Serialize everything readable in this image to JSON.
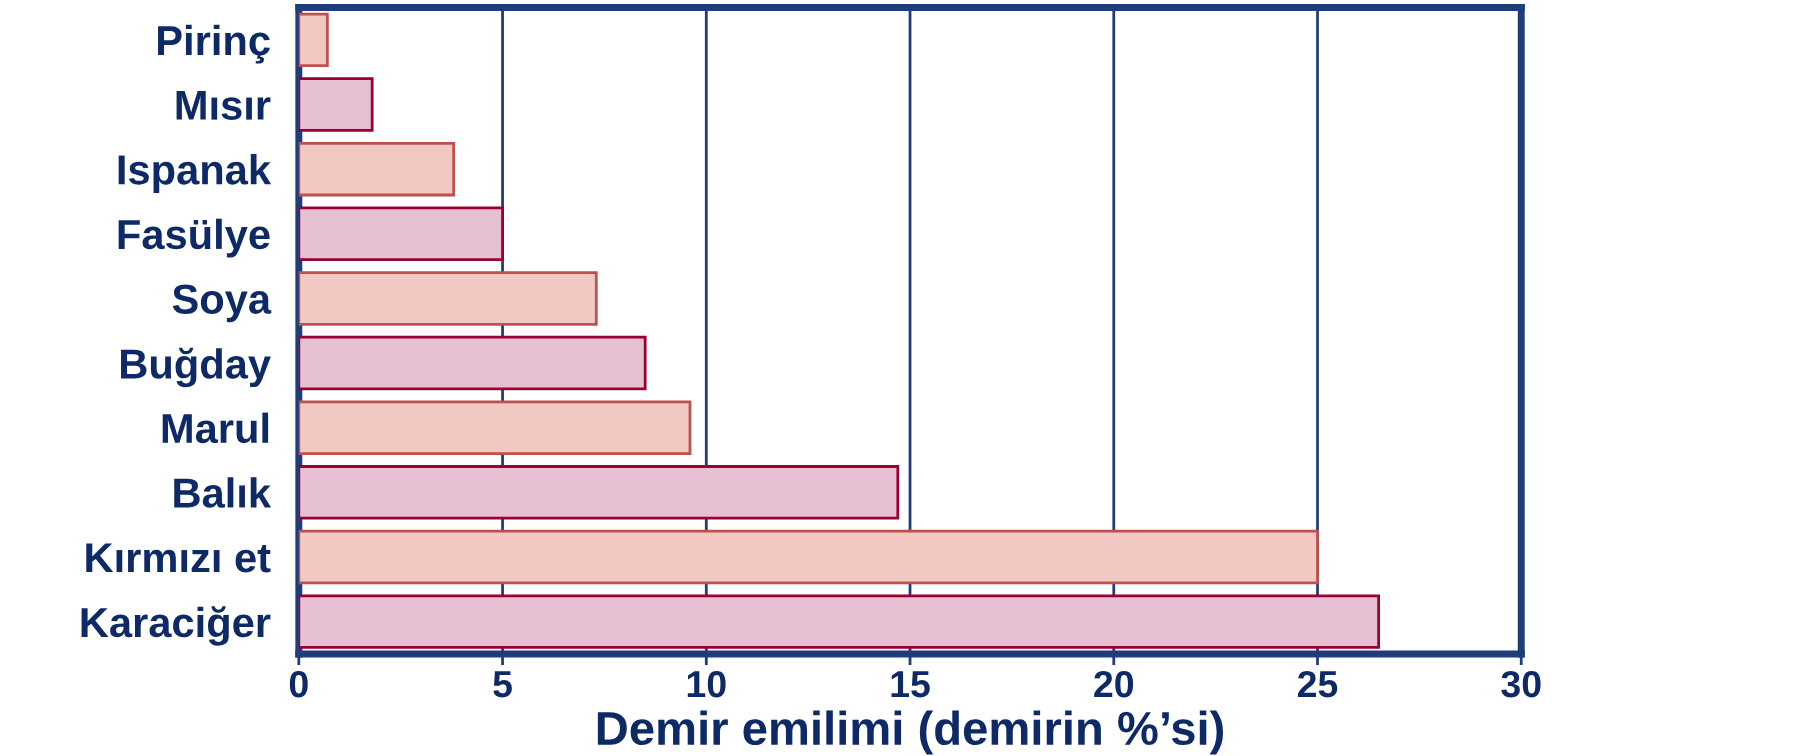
{
  "chart_data": {
    "type": "bar",
    "orientation": "horizontal",
    "xlabel": "Demir emilimi (demirin %’si)",
    "categories": [
      "Pirinç",
      "Mısır",
      "Ispanak",
      "Fasülye",
      "Soya",
      "Buğday",
      "Marul",
      "Balık",
      "Kırmızı et",
      "Karaciğer"
    ],
    "values": [
      0.7,
      1.8,
      3.8,
      5,
      7.3,
      8.5,
      9.6,
      14.7,
      25,
      26.5
    ],
    "colors": [
      "#f2c9c2",
      "#e6bfd3",
      "#f2c9c2",
      "#e6bfd3",
      "#f2c9c2",
      "#e6bfd3",
      "#f2c9c2",
      "#e6bfd3",
      "#f2c9c2",
      "#e6bfd3"
    ],
    "xlim": [
      0,
      30
    ],
    "xticks": [
      0,
      5,
      10,
      15,
      20,
      25,
      30
    ],
    "grid": "x"
  }
}
